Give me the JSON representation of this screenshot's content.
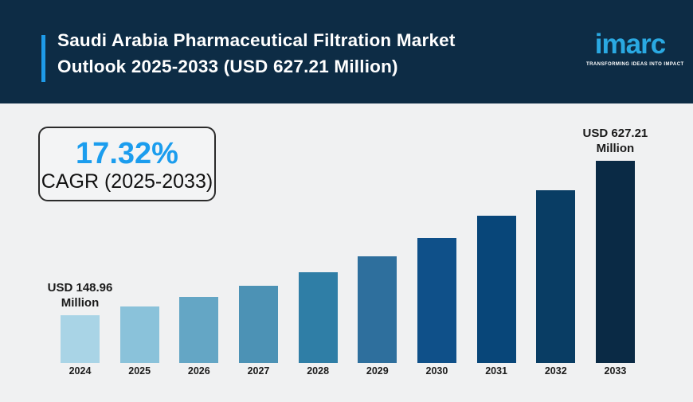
{
  "header": {
    "title_lines": {
      "0": "Saudi Arabia Pharmaceutical Filtration Market",
      "1": "Outlook 2025-2033 (USD 627.21 Million)"
    },
    "brand": "imarc",
    "tagline": "TRANSFORMING IDEAS INTO IMPACT",
    "colors": {
      "background": "#0D2C45",
      "accent_bar": "#1E9BE9",
      "brand_blue": "#2AA9E2"
    }
  },
  "cagr_box": {
    "value": "17.32%",
    "label": "CAGR (2025-2033)",
    "value_color": "#1B9DEE"
  },
  "chart_data": {
    "type": "bar",
    "title": "Saudi Arabia Pharmaceutical Filtration Market Outlook 2025-2033 (USD 627.21 Million)",
    "xlabel": "",
    "ylabel": "",
    "ylim": [
      0,
      627.21
    ],
    "grid": false,
    "legend": false,
    "cagr_2025_2033": "17.32%",
    "categories": [
      "2024",
      "2025",
      "2026",
      "2027",
      "2028",
      "2029",
      "2030",
      "2031",
      "2032",
      "2033"
    ],
    "values": [
      148.96,
      174.76,
      205.03,
      240.54,
      282.21,
      331.09,
      388.43,
      455.7,
      534.63,
      627.21
    ],
    "labeled_points": {
      "first": {
        "year": "2024",
        "label_line1": "USD 148.96",
        "label_line2": "Million"
      },
      "last": {
        "year": "2033",
        "label_line1": "USD 627.21",
        "label_line2": "Million"
      }
    },
    "bar_colors": [
      "#A9D4E6",
      "#8AC2DA",
      "#64A6C5",
      "#4C92B5",
      "#2F7EA6",
      "#2E6F9D",
      "#0F5089",
      "#084679",
      "#093D64",
      "#0A2A45"
    ],
    "background_color": "#F0F1F2"
  }
}
